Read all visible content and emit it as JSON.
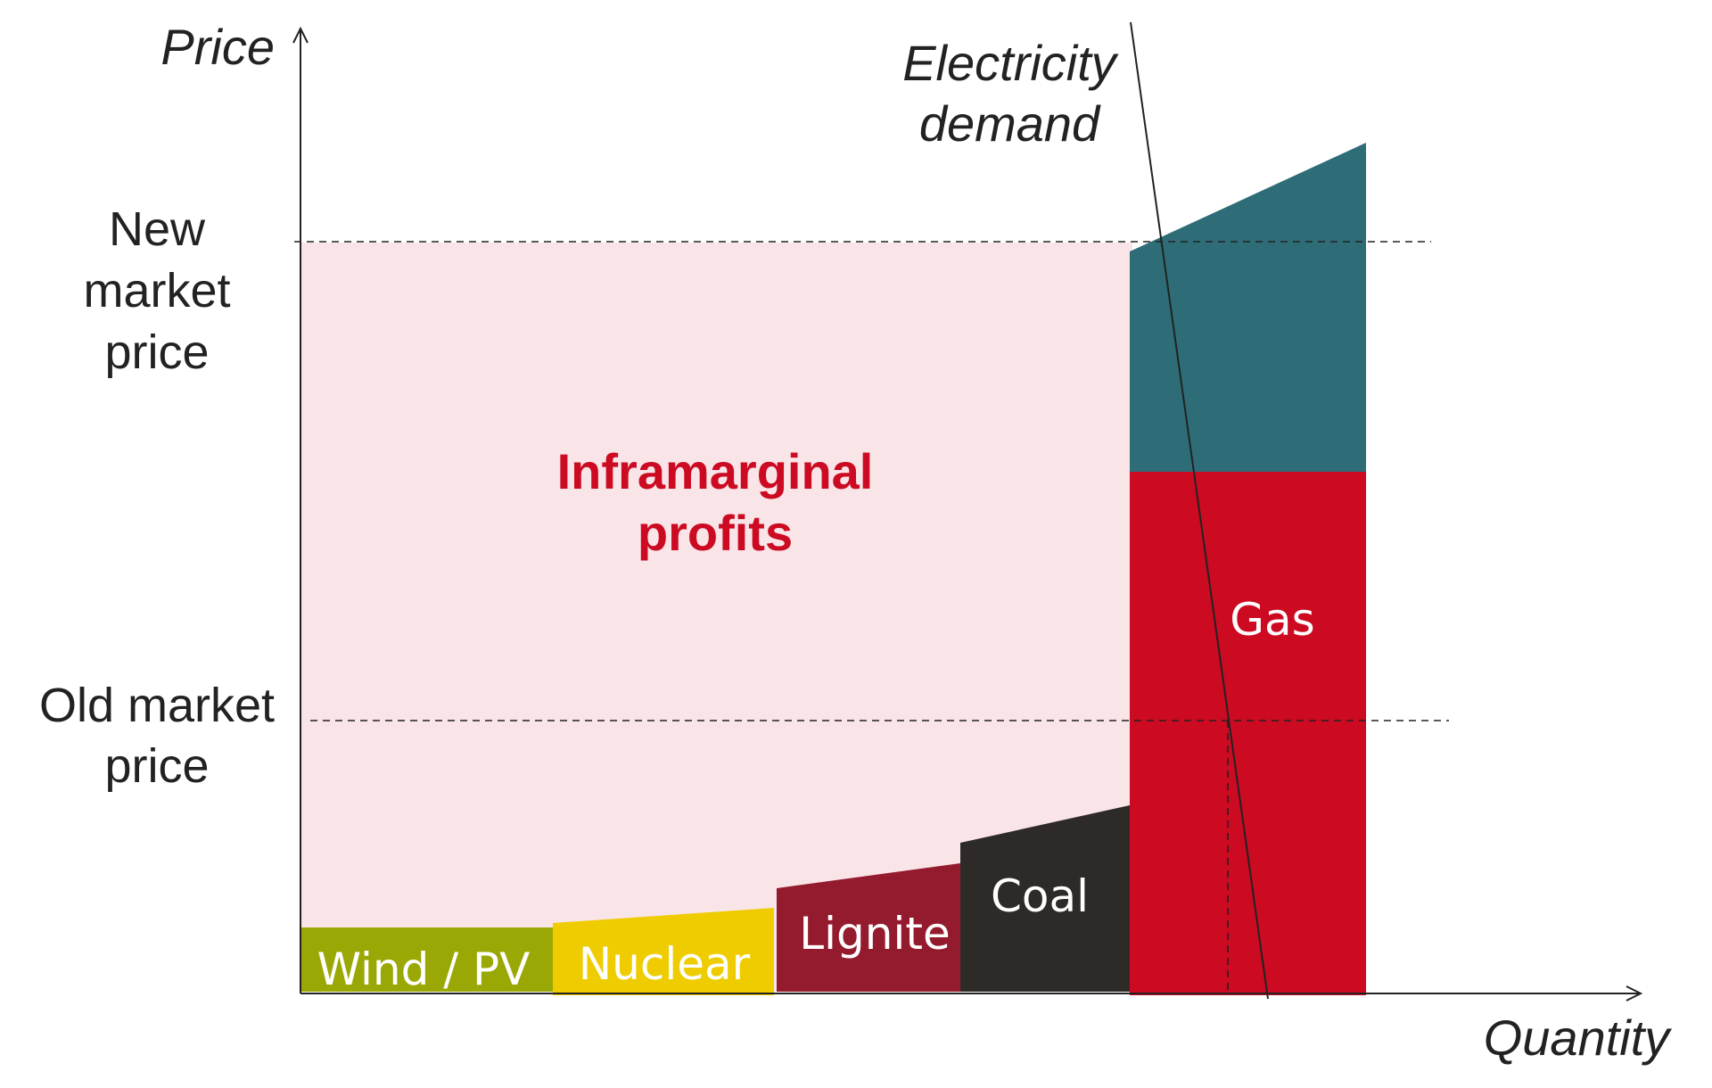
{
  "axes": {
    "y_title": "Price",
    "x_title": "Quantity"
  },
  "price_labels": {
    "new_price": [
      "New",
      "market",
      "price"
    ],
    "old_price": [
      "Old market",
      "price"
    ]
  },
  "demand_label": [
    "Electricity",
    "demand"
  ],
  "profit_label": [
    "Inframarginal",
    "profits"
  ],
  "supply_blocks": [
    {
      "name": "Wind / PV",
      "color": "#9aa805"
    },
    {
      "name": "Nuclear",
      "color": "#efcc00"
    },
    {
      "name": "Lignite",
      "color": "#941b2e"
    },
    {
      "name": "Coal",
      "color": "#2e2a28"
    },
    {
      "name": "Gas",
      "color": "#cc0a22"
    }
  ],
  "gas_price_increase_color": "#2e6d77",
  "profit_area_color": "#f9e4e8"
}
